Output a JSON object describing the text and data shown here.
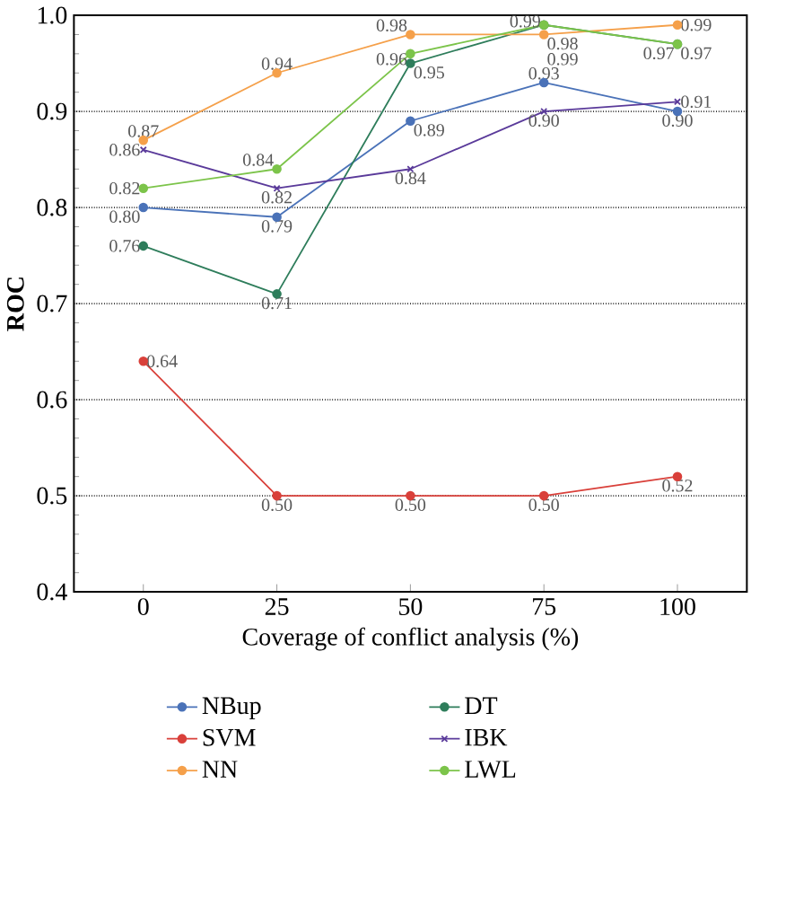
{
  "chart_data": {
    "type": "line",
    "xlabel": "Coverage of conflict analysis (%)",
    "ylabel": "ROC",
    "x": [
      0,
      25,
      50,
      75,
      100
    ],
    "xlim": [
      -13,
      113
    ],
    "xticks": [
      0,
      25,
      50,
      75,
      100
    ],
    "ylim": [
      0.4,
      1.0
    ],
    "yticks": [
      {
        "value": 0.4,
        "label": "0.4"
      },
      {
        "value": 0.5,
        "label": "0.5"
      },
      {
        "value": 0.6,
        "label": "0.6"
      },
      {
        "value": 0.7,
        "label": "0.7"
      },
      {
        "value": 0.8,
        "label": "0.8"
      },
      {
        "value": 0.9,
        "label": "0.9"
      },
      {
        "value": 1.0,
        "label": "1.0"
      }
    ],
    "grid": "y",
    "legend": "bottom",
    "marker": "circle",
    "line_style": "solid",
    "series": [
      {
        "name": "NBup",
        "color": "#4a72b8",
        "values": [
          0.8,
          0.79,
          0.89,
          0.93,
          0.9
        ],
        "value_labels": [
          "0.80",
          "0.79",
          "0.89",
          "0.93",
          "0.90"
        ]
      },
      {
        "name": "SVM",
        "color": "#d9403a",
        "values": [
          0.64,
          0.5,
          0.5,
          0.5,
          0.52
        ],
        "value_labels": [
          "0.64",
          "0.50",
          "0.50",
          "0.50",
          "0.52"
        ]
      },
      {
        "name": "NN",
        "color": "#f5a04a",
        "values": [
          0.87,
          0.94,
          0.98,
          0.98,
          0.99
        ],
        "value_labels": [
          "0.87",
          "0.94",
          "0.98",
          "0.98",
          "0.99"
        ]
      },
      {
        "name": "DT",
        "color": "#2e7d5b",
        "values": [
          0.76,
          0.71,
          0.95,
          0.99,
          0.97
        ],
        "value_labels": [
          "0.76",
          "0.71",
          "0.95",
          "0.99",
          "0.97"
        ]
      },
      {
        "name": "IBK",
        "color": "#5a3a9a",
        "marker": "cross",
        "values": [
          0.86,
          0.82,
          0.84,
          0.9,
          0.91
        ],
        "value_labels": [
          "0.86",
          "0.82",
          "0.84",
          "0.90",
          "0.91"
        ]
      },
      {
        "name": "LWL",
        "color": "#7cc44a",
        "values": [
          0.82,
          0.84,
          0.96,
          0.99,
          0.97
        ],
        "value_labels": [
          "0.82",
          "0.84",
          "0.96",
          "0.99",
          "0.97"
        ]
      }
    ]
  }
}
